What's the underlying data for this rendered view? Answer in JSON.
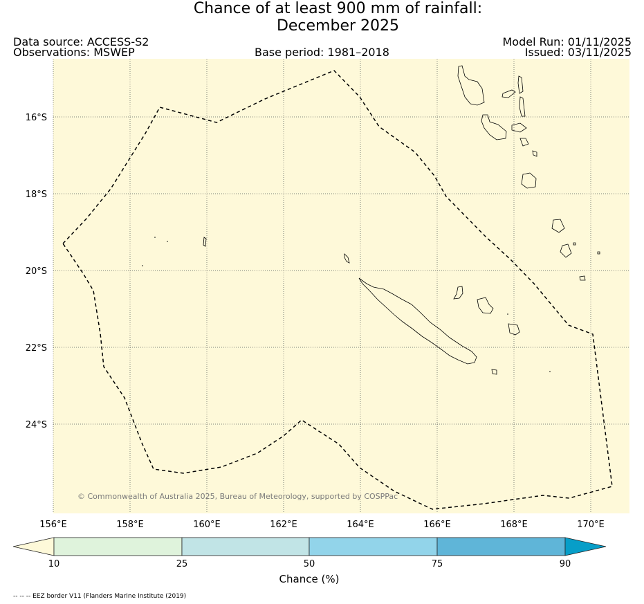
{
  "header": {
    "title_line1": "Chance of at least 900 mm of rainfall:",
    "title_line2": "December 2025",
    "data_source": "Data source: ACCESS-S2",
    "observations": "Observations: MSWEP",
    "base_period": "Base period: 1981–2018",
    "model_run": "Model Run: 01/11/2025",
    "issued": "Issued: 03/11/2025"
  },
  "map": {
    "lat_labels": [
      "16°S",
      "18°S",
      "20°S",
      "22°S",
      "24°S"
    ],
    "lon_labels": [
      "156°E",
      "158°E",
      "160°E",
      "162°E",
      "164°E",
      "166°E",
      "168°E",
      "170°E"
    ],
    "background_color": "#fef9d9",
    "copyright": "© Commonwealth of Australia 2025, Bureau of Meteorology, supported by COSPPac"
  },
  "colorbar": {
    "label": "Chance (%)",
    "ticks": [
      "10",
      "25",
      "50",
      "75",
      "90"
    ],
    "colors": [
      "#fef9d9",
      "#dff3dc",
      "#c1e4e6",
      "#92d4ea",
      "#5fb5d8",
      "#079ec8"
    ]
  },
  "footnote": "-- -- -- EEZ border V11 (Flanders Marine Institute (2019)"
}
